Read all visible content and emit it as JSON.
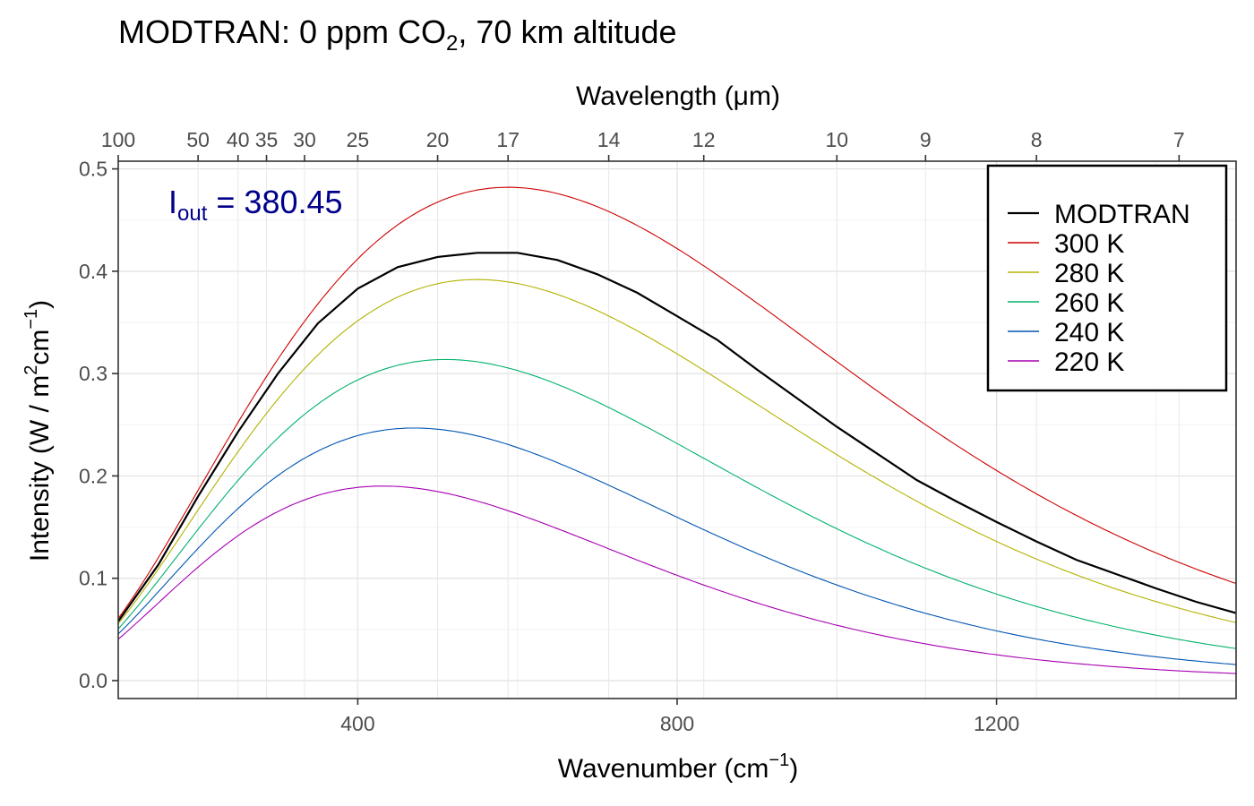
{
  "chart_data": {
    "type": "line",
    "title": "MODTRAN: 0 ppm CO",
    "title_sub": "2",
    "title_rest": ", 70 km altitude",
    "xlabel": "Wavenumber (cm",
    "xlabel_sup": "−1",
    "xlabel_close": ")",
    "ylabel_main": "Intensity (W / m",
    "ylabel_sup1": "2",
    "ylabel_mid": "cm",
    "ylabel_sup2": "−1",
    "ylabel_close": ")",
    "x2label": "Wavelength (μm)",
    "xlim": [
      100,
      1500
    ],
    "ylim": [
      0,
      0.5
    ],
    "x_ticks": [
      400,
      800,
      1200
    ],
    "y_ticks": [
      0.0,
      0.1,
      0.2,
      0.3,
      0.4,
      0.5
    ],
    "y_tick_labels": [
      "0.0",
      "0.1",
      "0.2",
      "0.3",
      "0.4",
      "0.5"
    ],
    "x2_ticks": [
      100,
      50,
      40,
      35,
      30,
      25,
      20,
      17,
      14,
      12,
      10,
      9,
      8,
      7
    ],
    "grid": true,
    "legend_position": "top-right",
    "annotation": {
      "label": "I",
      "sub": "out",
      "eq": " = ",
      "value": "380.45"
    },
    "series": [
      {
        "name": "MODTRAN",
        "color": "#000000",
        "kind": "modtran",
        "x": [
          100,
          150,
          200,
          250,
          300,
          350,
          400,
          450,
          500,
          550,
          600,
          650,
          700,
          750,
          800,
          850,
          900,
          950,
          1000,
          1050,
          1100,
          1150,
          1200,
          1250,
          1300,
          1350,
          1400,
          1450,
          1500
        ],
        "y": [
          0.058,
          0.113,
          0.18,
          0.243,
          0.3,
          0.349,
          0.383,
          0.404,
          0.414,
          0.418,
          0.418,
          0.411,
          0.397,
          0.379,
          0.356,
          0.333,
          0.304,
          0.276,
          0.248,
          0.222,
          0.196,
          0.175,
          0.155,
          0.136,
          0.118,
          0.104,
          0.09,
          0.077,
          0.066
        ]
      },
      {
        "name": "300 K",
        "color": "#cd0000",
        "kind": "planck",
        "T": 300
      },
      {
        "name": "280 K",
        "color": "#b2b200",
        "kind": "planck",
        "T": 280
      },
      {
        "name": "260 K",
        "color": "#00b26b",
        "kind": "planck",
        "T": 260
      },
      {
        "name": "240 K",
        "color": "#0055b2",
        "kind": "planck",
        "T": 240
      },
      {
        "name": "220 K",
        "color": "#a600b2",
        "kind": "planck",
        "T": 220
      }
    ]
  }
}
